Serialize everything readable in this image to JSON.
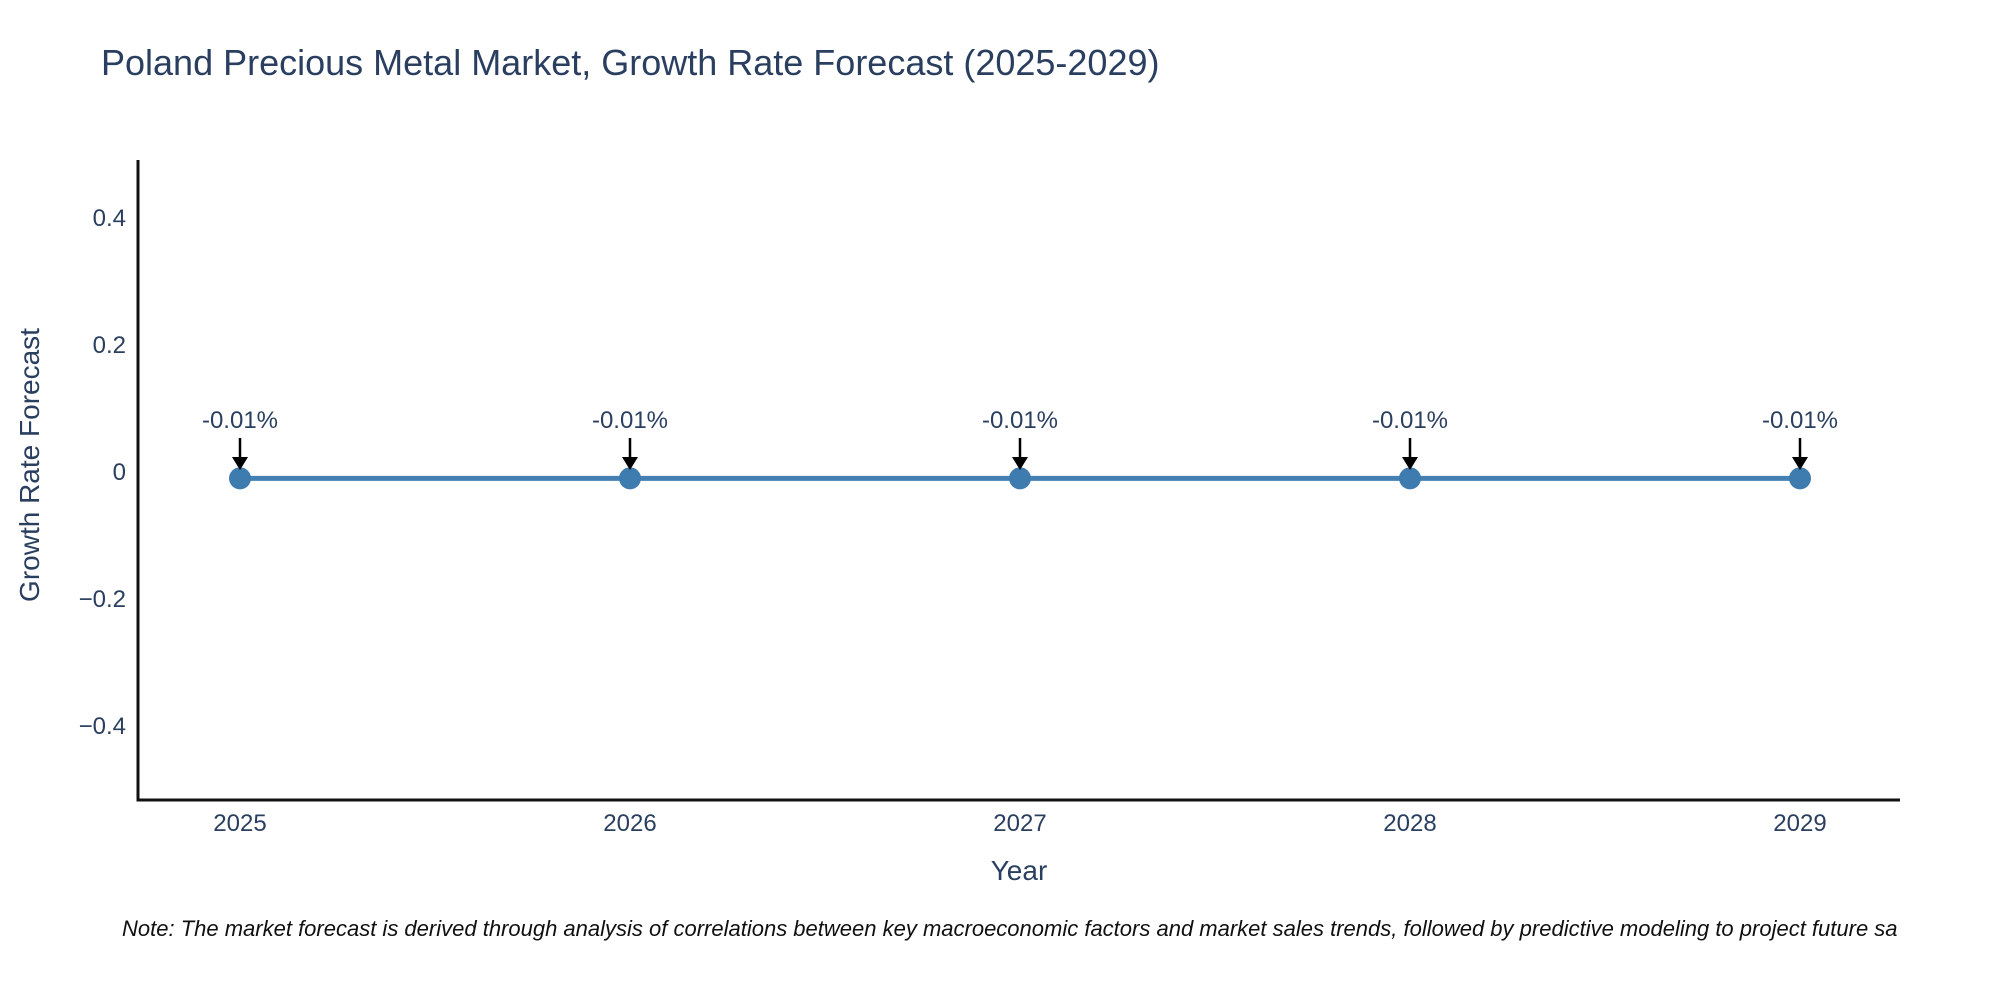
{
  "chart": {
    "title": "Poland Precious Metal Market, Growth Rate Forecast (2025-2029)",
    "x_axis_title": "Year",
    "y_axis_title": "Growth Rate Forecast",
    "note": "Note: The market forecast is derived through analysis of correlations between key macroeconomic factors and market sales trends, followed by predictive modeling to project future sa",
    "colors": {
      "accent_line": "#4580b4",
      "marker_fill": "#3e7bae",
      "text": "#2a3f5f",
      "axis_line": "#111111",
      "arrow": "#000000",
      "note_text": "#101010",
      "background": "#ffffff"
    }
  },
  "chart_data": {
    "type": "line",
    "title": "Poland Precious Metal Market, Growth Rate Forecast (2025-2029)",
    "xlabel": "Year",
    "ylabel": "Growth Rate Forecast",
    "categories": [
      "2025",
      "2026",
      "2027",
      "2028",
      "2029"
    ],
    "series": [
      {
        "name": "Growth Rate Forecast",
        "values": [
          -0.01,
          -0.01,
          -0.01,
          -0.01,
          -0.01
        ],
        "point_labels": [
          "-0.01%",
          "-0.01%",
          "-0.01%",
          "-0.01%",
          "-0.01%"
        ]
      }
    ],
    "yticks": [
      0.4,
      0.2,
      0,
      -0.2,
      -0.4
    ],
    "ytick_labels": [
      "0.4",
      "0.2",
      "0",
      "−0.2",
      "−0.4"
    ],
    "ylim": [
      -0.52,
      0.49
    ],
    "grid": false,
    "legend_position": "none",
    "marker": "circle",
    "annotations_style": "value labels with black arrows pointing down to each marker"
  }
}
